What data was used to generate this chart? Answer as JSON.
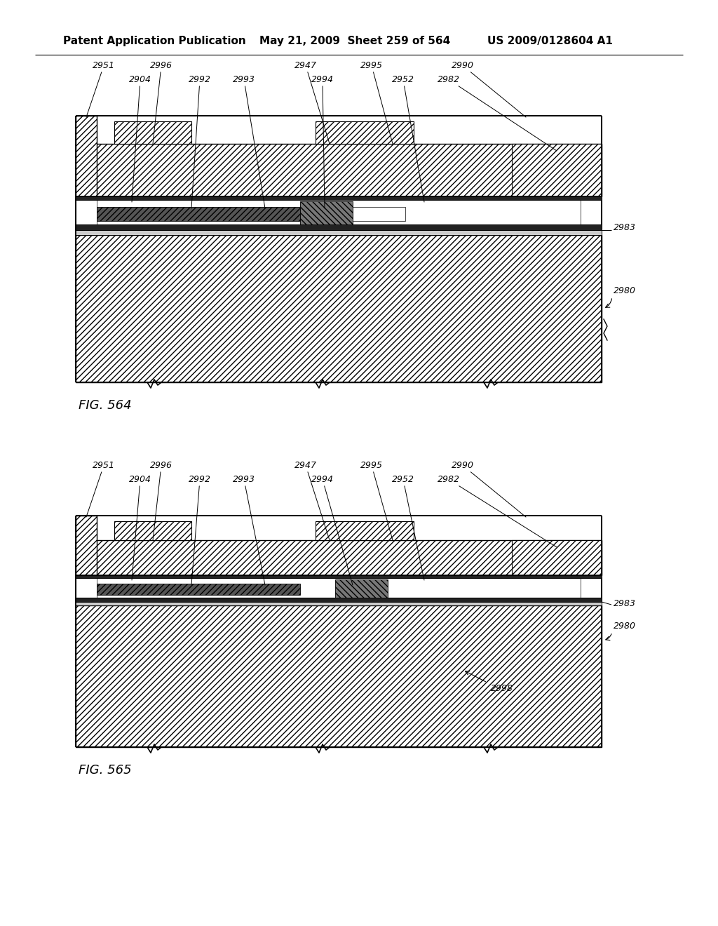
{
  "header_left": "Patent Application Publication",
  "header_mid": "May 21, 2009  Sheet 259 of 564",
  "header_right": "US 2009/0128604 A1",
  "fig1_label": "FIG. 564",
  "fig2_label": "FIG. 565",
  "bg_color": "#ffffff"
}
